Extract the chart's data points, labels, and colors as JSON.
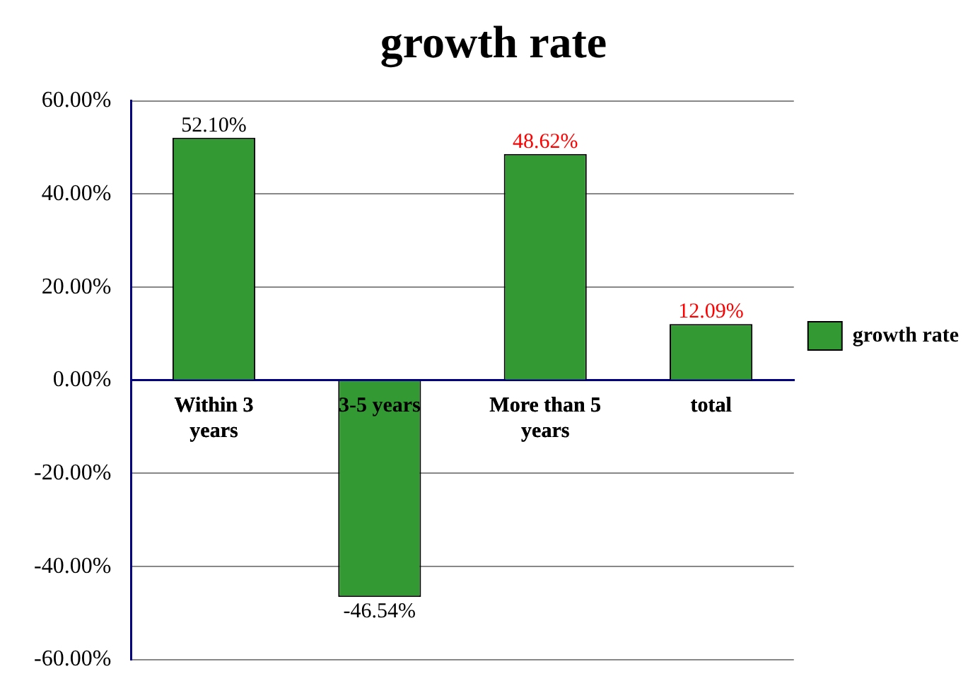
{
  "chart_data": {
    "type": "bar",
    "title": "growth rate",
    "categories": [
      "Within 3 years",
      "3-5 years",
      "More than 5 years",
      "total"
    ],
    "series": [
      {
        "name": "growth rate",
        "color": "#339933",
        "values": [
          52.1,
          -46.54,
          48.62,
          12.09
        ]
      }
    ],
    "ylim": [
      -60,
      60
    ],
    "yticks": [
      {
        "value": -60,
        "label": "-60.00%"
      },
      {
        "value": -40,
        "label": "-40.00%"
      },
      {
        "value": -20,
        "label": "-20.00%"
      },
      {
        "value": 0,
        "label": "0.00%"
      },
      {
        "value": 20,
        "label": "20.00%"
      },
      {
        "value": 40,
        "label": "40.00%"
      },
      {
        "value": 60,
        "label": "60.00%"
      }
    ],
    "value_labels": [
      "52.10%",
      "-46.54%",
      "48.62%",
      "12.09%"
    ],
    "grid": "y",
    "legend": "right"
  }
}
